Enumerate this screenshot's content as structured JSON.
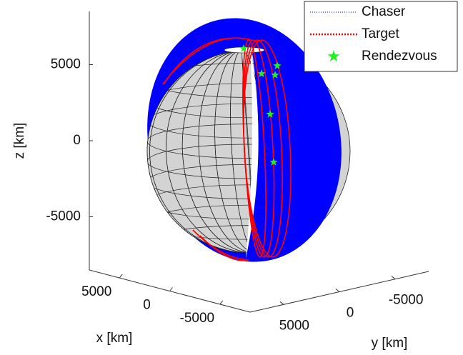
{
  "chart_data": {
    "type": "orbit3d",
    "xlabel": "x [km]",
    "ylabel": "y [km]",
    "zlabel": "z [km]",
    "xlim": [
      8000,
      -8000
    ],
    "ylim": [
      8000,
      -8000
    ],
    "zlim": [
      -8500,
      8500
    ],
    "xticks": [
      5000,
      0,
      -5000
    ],
    "yticks": [
      5000,
      0,
      -5000
    ],
    "zticks": [
      5000,
      0,
      -5000
    ],
    "series": [
      {
        "name": "Chaser",
        "color": "#0000ff"
      },
      {
        "name": "Target",
        "color": "#ff0000"
      },
      {
        "name": "Rendezvous",
        "color": "#22ee22",
        "values": [
          6060,
          4930,
          4410,
          4320,
          1740,
          -1410
        ]
      }
    ]
  }
}
